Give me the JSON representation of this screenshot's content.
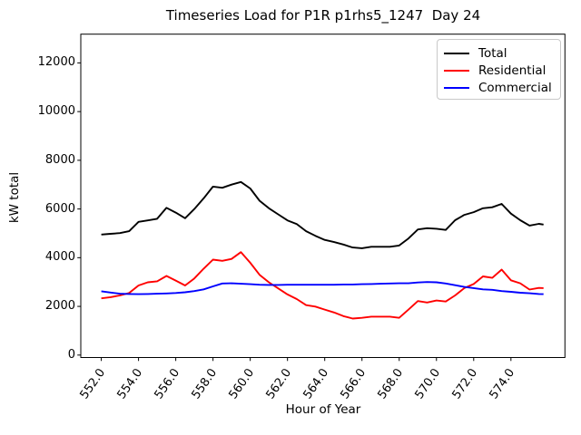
{
  "window": {
    "background": "#ffffff"
  },
  "chart_data": {
    "type": "line",
    "title": "Timeseries Load for P1R p1rhs5_1247  Day 24",
    "xlabel": "Hour of Year",
    "ylabel": "kW total",
    "grid": false,
    "legend_position": "upper-right",
    "xlim": [
      550.9,
      576.9
    ],
    "ylim": [
      -100,
      13180
    ],
    "x_ticks": [
      552,
      554,
      556,
      558,
      560,
      562,
      564,
      566,
      568,
      570,
      572,
      574
    ],
    "x_tick_labels": [
      "552.0",
      "554.0",
      "556.0",
      "558.0",
      "560.0",
      "562.0",
      "564.0",
      "566.0",
      "568.0",
      "570.0",
      "572.0",
      "574.0"
    ],
    "y_ticks": [
      0,
      2000,
      4000,
      6000,
      8000,
      10000,
      12000
    ],
    "y_tick_labels": [
      "0",
      "2000",
      "4000",
      "6000",
      "8000",
      "10000",
      "12000"
    ],
    "x": [
      552.0,
      552.5,
      553.0,
      553.5,
      554.0,
      554.5,
      555.0,
      555.5,
      556.0,
      556.5,
      557.0,
      557.5,
      558.0,
      558.5,
      559.0,
      559.5,
      560.0,
      560.5,
      561.0,
      561.5,
      562.0,
      562.5,
      563.0,
      563.5,
      564.0,
      564.5,
      565.0,
      565.5,
      566.0,
      566.5,
      567.0,
      567.5,
      568.0,
      568.5,
      569.0,
      569.5,
      570.0,
      570.5,
      571.0,
      571.5,
      572.0,
      572.5,
      573.0,
      573.5,
      574.0,
      574.5,
      575.0,
      575.5,
      575.75
    ],
    "series": [
      {
        "name": "Total",
        "color": "#000000",
        "values": [
          4950,
          4980,
          5010,
          5090,
          5470,
          5530,
          5600,
          6050,
          5850,
          5620,
          6000,
          6440,
          6920,
          6870,
          7000,
          7110,
          6840,
          6340,
          6030,
          5780,
          5530,
          5380,
          5090,
          4900,
          4730,
          4640,
          4540,
          4420,
          4390,
          4450,
          4450,
          4450,
          4500,
          4790,
          5160,
          5210,
          5190,
          5140,
          5540,
          5760,
          5870,
          6030,
          6070,
          6210,
          5810,
          5540,
          5320,
          5390,
          5360
        ]
      },
      {
        "name": "Residential",
        "color": "#ff0000",
        "values": [
          2330,
          2380,
          2450,
          2550,
          2860,
          2990,
          3030,
          3250,
          3060,
          2860,
          3150,
          3550,
          3920,
          3870,
          3950,
          4230,
          3790,
          3300,
          2990,
          2740,
          2490,
          2300,
          2050,
          1990,
          1870,
          1750,
          1600,
          1500,
          1530,
          1580,
          1580,
          1580,
          1530,
          1870,
          2220,
          2160,
          2240,
          2200,
          2450,
          2750,
          2920,
          3230,
          3170,
          3510,
          3070,
          2950,
          2690,
          2760,
          2750
        ]
      },
      {
        "name": "Commercial",
        "color": "#0000ff",
        "values": [
          2620,
          2570,
          2520,
          2510,
          2500,
          2510,
          2520,
          2530,
          2550,
          2580,
          2630,
          2700,
          2820,
          2940,
          2950,
          2930,
          2910,
          2890,
          2880,
          2880,
          2890,
          2890,
          2890,
          2890,
          2890,
          2890,
          2900,
          2900,
          2910,
          2920,
          2930,
          2940,
          2950,
          2950,
          2980,
          3000,
          2990,
          2940,
          2870,
          2800,
          2750,
          2700,
          2680,
          2630,
          2600,
          2560,
          2540,
          2510,
          2500
        ]
      }
    ]
  }
}
